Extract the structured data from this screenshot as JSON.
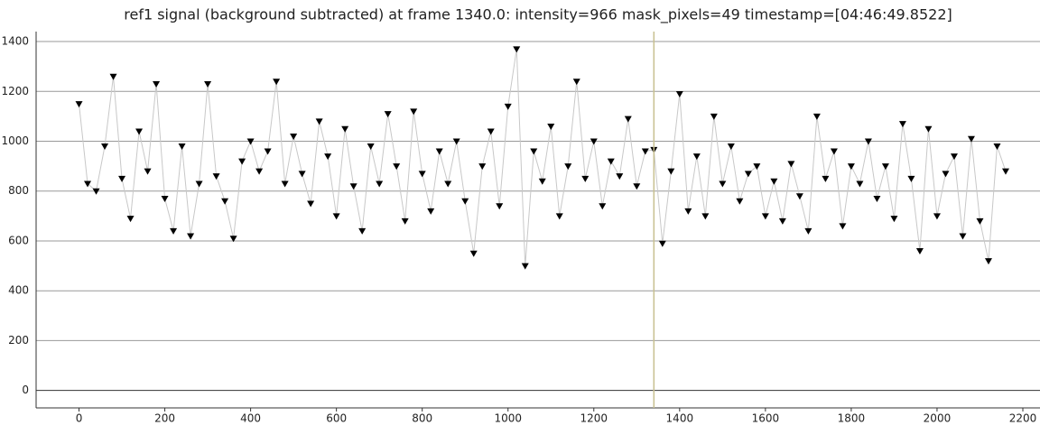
{
  "chart_data": {
    "type": "line",
    "title": "ref1 signal (background subtracted) at frame 1340.0: intensity=966 mask_pixels=49 timestamp=[04:46:49.8522]",
    "x": [
      0,
      20,
      40,
      60,
      80,
      100,
      120,
      140,
      160,
      180,
      200,
      220,
      240,
      260,
      280,
      300,
      320,
      340,
      360,
      380,
      400,
      420,
      440,
      460,
      480,
      500,
      520,
      540,
      560,
      580,
      600,
      620,
      640,
      660,
      680,
      700,
      720,
      740,
      760,
      780,
      800,
      820,
      840,
      860,
      880,
      900,
      920,
      940,
      960,
      980,
      1000,
      1020,
      1040,
      1060,
      1080,
      1100,
      1120,
      1140,
      1160,
      1180,
      1200,
      1220,
      1240,
      1260,
      1280,
      1300,
      1320,
      1340,
      1360,
      1380,
      1400,
      1420,
      1440,
      1460,
      1480,
      1500,
      1520,
      1540,
      1560,
      1580,
      1600,
      1620,
      1640,
      1660,
      1680,
      1700,
      1720,
      1740,
      1760,
      1780,
      1800,
      1820,
      1840,
      1860,
      1880,
      1900,
      1920,
      1940,
      1960,
      1980,
      2000,
      2020,
      2040,
      2060,
      2080,
      2100,
      2120,
      2140,
      2160
    ],
    "series": [
      {
        "color": "#000000",
        "line_color": "#c8c8c8",
        "values": [
          1150,
          830,
          800,
          980,
          1260,
          850,
          690,
          1040,
          880,
          1230,
          770,
          640,
          980,
          620,
          830,
          1230,
          860,
          760,
          610,
          920,
          1000,
          880,
          960,
          1240,
          830,
          1020,
          870,
          750,
          1080,
          940,
          700,
          1050,
          820,
          640,
          980,
          830,
          1110,
          900,
          680,
          1120,
          870,
          720,
          960,
          830,
          1000,
          760,
          550,
          900,
          1040,
          740,
          1140,
          1370,
          500,
          960,
          840,
          1060,
          700,
          900,
          1240,
          850,
          1000,
          740,
          920,
          860,
          1090,
          820,
          960,
          966,
          590,
          880,
          1190,
          720,
          940,
          700,
          1100,
          830,
          980,
          760,
          870,
          900,
          700,
          840,
          680,
          910,
          780,
          640,
          1100,
          850,
          960,
          660,
          900,
          830,
          1000,
          770,
          900,
          690,
          1070,
          850,
          560,
          1050,
          700,
          870,
          940,
          620,
          1010,
          680,
          520,
          980,
          880
        ]
      }
    ],
    "cursor": 1340,
    "cursor_color": "#c8c090",
    "xlim": [
      -100,
      2240
    ],
    "ylim": [
      -70,
      1440
    ],
    "xticks": [
      0,
      200,
      400,
      600,
      800,
      1000,
      1200,
      1400,
      1600,
      1800,
      2000,
      2200
    ],
    "yticks": [
      0,
      200,
      400,
      600,
      800,
      1000,
      1200,
      1400
    ],
    "grid": true
  }
}
